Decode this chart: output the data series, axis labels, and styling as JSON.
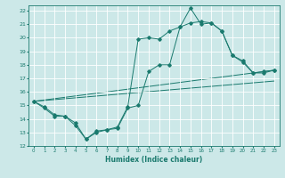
{
  "xlabel": "Humidex (Indice chaleur)",
  "background_color": "#cce8e8",
  "grid_color": "#ffffff",
  "line_color": "#1a7a6e",
  "xlim": [
    -0.5,
    23.5
  ],
  "ylim": [
    12,
    22.4
  ],
  "xticks": [
    0,
    1,
    2,
    3,
    4,
    5,
    6,
    7,
    8,
    9,
    10,
    11,
    12,
    13,
    14,
    15,
    16,
    17,
    18,
    19,
    20,
    21,
    22,
    23
  ],
  "yticks": [
    12,
    13,
    14,
    15,
    16,
    17,
    18,
    19,
    20,
    21,
    22
  ],
  "line1_x": [
    0,
    1,
    2,
    3,
    4,
    5,
    6,
    7,
    8,
    9,
    10,
    11,
    12,
    13,
    14,
    15,
    16,
    17,
    18,
    19,
    20,
    21,
    22,
    23
  ],
  "line1_y": [
    15.3,
    14.8,
    14.2,
    14.2,
    13.5,
    12.5,
    13.0,
    13.2,
    13.3,
    14.8,
    15.0,
    17.5,
    18.0,
    18.0,
    20.8,
    21.1,
    21.2,
    21.1,
    20.5,
    18.7,
    18.2,
    17.4,
    17.4,
    17.6
  ],
  "line2_x": [
    0,
    1,
    2,
    3,
    4,
    5,
    6,
    7,
    8,
    9,
    10,
    11,
    12,
    13,
    14,
    15,
    16,
    17,
    18,
    19,
    20,
    21,
    22,
    23
  ],
  "line2_y": [
    15.3,
    14.9,
    14.3,
    14.2,
    13.7,
    12.5,
    13.1,
    13.2,
    13.4,
    14.9,
    19.9,
    20.0,
    19.9,
    20.5,
    20.8,
    22.2,
    21.0,
    21.1,
    20.5,
    18.7,
    18.3,
    17.4,
    17.5,
    17.6
  ],
  "line3_x": [
    0,
    23
  ],
  "line3_y": [
    15.3,
    17.6
  ],
  "line4_x": [
    0,
    23
  ],
  "line4_y": [
    15.3,
    16.8
  ]
}
